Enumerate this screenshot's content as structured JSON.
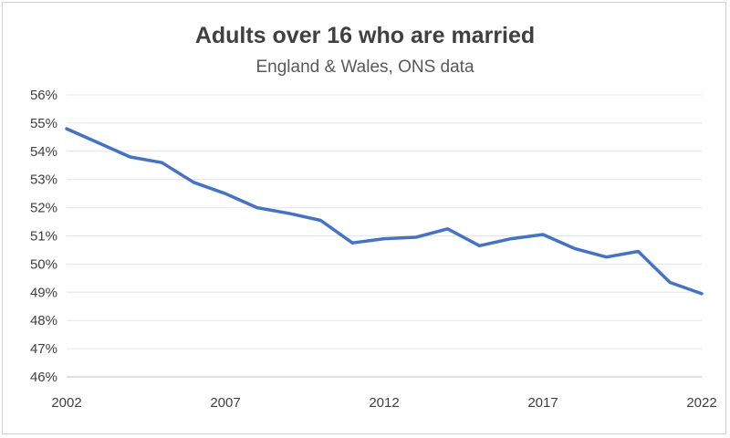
{
  "chart_data": {
    "type": "line",
    "title": "Adults over 16 who are married",
    "subtitle": "England & Wales, ONS data",
    "xlabel": "",
    "ylabel": "",
    "x": [
      2002,
      2003,
      2004,
      2005,
      2006,
      2007,
      2008,
      2009,
      2010,
      2011,
      2012,
      2013,
      2014,
      2015,
      2016,
      2017,
      2018,
      2019,
      2020,
      2021,
      2022
    ],
    "series": [
      {
        "values": [
          54.8,
          54.3,
          53.8,
          53.6,
          52.9,
          52.5,
          52.0,
          51.8,
          51.55,
          50.75,
          50.9,
          50.95,
          51.25,
          50.65,
          50.9,
          51.05,
          50.55,
          50.25,
          50.45,
          49.35,
          48.95
        ],
        "color": "#4472c4"
      }
    ],
    "x_tick_labels": [
      "2002",
      "2007",
      "2012",
      "2017",
      "2022"
    ],
    "y_tick_labels": [
      "56%",
      "55%",
      "54%",
      "53%",
      "52%",
      "51%",
      "50%",
      "49%",
      "48%",
      "47%",
      "46%"
    ],
    "ylim": [
      46,
      56
    ],
    "xlim": [
      2002,
      2022
    ],
    "grid": true,
    "legend": "none"
  }
}
